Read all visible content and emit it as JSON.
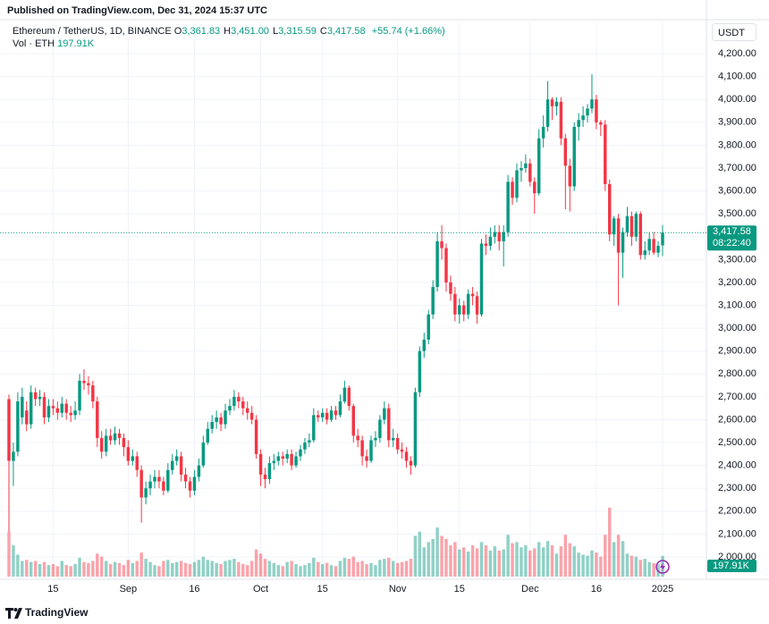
{
  "header": {
    "published": "Published on TradingView.com, Dec 31, 2024 15:37 UTC",
    "symbol": "Ethereum / TetherUS, 1D, BINANCE",
    "ohlc": [
      {
        "key": "O",
        "value": "3,361.83"
      },
      {
        "key": "H",
        "value": "3,451.00"
      },
      {
        "key": "L",
        "value": "3,315.59"
      },
      {
        "key": "C",
        "value": "3,417.58"
      }
    ],
    "change": "+55.74 (+1.66%)",
    "volume_label": "Vol · ETH",
    "volume_value": "197.91K"
  },
  "chart_data": {
    "type": "candlestick",
    "currency": "USDT",
    "categories": [
      null,
      null,
      null,
      null,
      null,
      null,
      null,
      null,
      null,
      null,
      "15",
      null,
      null,
      null,
      null,
      null,
      null,
      null,
      null,
      null,
      null,
      null,
      null,
      null,
      null,
      null,
      null,
      "Sep",
      null,
      null,
      null,
      null,
      null,
      null,
      null,
      null,
      null,
      null,
      null,
      null,
      null,
      null,
      "16",
      null,
      null,
      null,
      null,
      null,
      null,
      null,
      null,
      null,
      null,
      null,
      null,
      null,
      null,
      "Oct",
      null,
      null,
      null,
      null,
      null,
      null,
      null,
      null,
      null,
      null,
      null,
      null,
      null,
      "15",
      null,
      null,
      null,
      null,
      null,
      null,
      null,
      null,
      null,
      null,
      null,
      null,
      null,
      null,
      null,
      null,
      "Nov",
      null,
      null,
      null,
      null,
      null,
      null,
      null,
      null,
      null,
      null,
      null,
      null,
      null,
      "15",
      null,
      null,
      null,
      null,
      null,
      null,
      null,
      null,
      null,
      null,
      null,
      null,
      null,
      null,
      null,
      "Dec",
      null,
      null,
      null,
      null,
      null,
      null,
      null,
      null,
      null,
      null,
      null,
      null,
      null,
      null,
      "16",
      null,
      null,
      null,
      null,
      null,
      null,
      null,
      null,
      null,
      null,
      null,
      null,
      null,
      null,
      "2025"
    ],
    "open": [
      2690,
      2420,
      2460,
      2610,
      2640,
      2580,
      2720,
      2690,
      2700,
      2610,
      2660,
      2650,
      2630,
      2670,
      2630,
      2620,
      2640,
      2770,
      2760,
      2750,
      2680,
      2520,
      2460,
      2530,
      2510,
      2540,
      2520,
      2480,
      2420,
      2440,
      2380,
      2260,
      2300,
      2330,
      2350,
      2330,
      2290,
      2380,
      2420,
      2440,
      2360,
      2330,
      2290,
      2350,
      2400,
      2500,
      2560,
      2590,
      2610,
      2580,
      2640,
      2660,
      2700,
      2680,
      2650,
      2630,
      2600,
      2450,
      2360,
      2340,
      2410,
      2420,
      2440,
      2430,
      2450,
      2400,
      2440,
      2470,
      2500,
      2510,
      2620,
      2610,
      2630,
      2600,
      2640,
      2620,
      2680,
      2740,
      2660,
      2530,
      2510,
      2440,
      2420,
      2510,
      2520,
      2600,
      2650,
      2510,
      2520,
      2470,
      2460,
      2420,
      2400,
      2720,
      2900,
      2950,
      3060,
      3180,
      3380,
      3350,
      3200,
      3150,
      3060,
      3100,
      3060,
      3150,
      3140,
      3060,
      3370,
      3360,
      3400,
      3420,
      3380,
      3420,
      3640,
      3570,
      3690,
      3700,
      3720,
      3640,
      3590,
      3830,
      3880,
      4000,
      3970,
      3990,
      3830,
      3710,
      3620,
      3880,
      3910,
      3930,
      3960,
      4000,
      3900,
      3890,
      3630,
      3410,
      3480,
      3330,
      3420,
      3490,
      3400,
      3500,
      3320,
      3340,
      3390,
      3330,
      3361.83
    ],
    "high": [
      2710,
      2500,
      2720,
      2740,
      2680,
      2750,
      2740,
      2730,
      2720,
      2690,
      2690,
      2680,
      2700,
      2690,
      2660,
      2680,
      2800,
      2820,
      2790,
      2770,
      2700,
      2550,
      2560,
      2560,
      2570,
      2560,
      2540,
      2510,
      2470,
      2460,
      2400,
      2330,
      2360,
      2380,
      2380,
      2350,
      2410,
      2450,
      2470,
      2460,
      2390,
      2350,
      2380,
      2430,
      2530,
      2590,
      2620,
      2640,
      2630,
      2670,
      2690,
      2730,
      2720,
      2700,
      2680,
      2660,
      2620,
      2470,
      2390,
      2440,
      2450,
      2460,
      2460,
      2470,
      2470,
      2460,
      2490,
      2520,
      2540,
      2650,
      2640,
      2650,
      2650,
      2660,
      2660,
      2710,
      2770,
      2750,
      2670,
      2560,
      2530,
      2470,
      2530,
      2550,
      2620,
      2680,
      2670,
      2560,
      2540,
      2500,
      2480,
      2440,
      2740,
      2920,
      2980,
      3080,
      3210,
      3420,
      3450,
      3370,
      3230,
      3180,
      3130,
      3120,
      3170,
      3180,
      3160,
      3390,
      3410,
      3440,
      3450,
      3450,
      3450,
      3670,
      3660,
      3720,
      3730,
      3760,
      3740,
      3660,
      3870,
      3930,
      4080,
      4010,
      4010,
      4010,
      3850,
      3740,
      3900,
      3940,
      3970,
      3980,
      4110,
      4020,
      3910,
      3910,
      3650,
      3490,
      3500,
      3440,
      3530,
      3510,
      3510,
      3510,
      3380,
      3420,
      3420,
      3380,
      3451
    ],
    "low": [
      2110,
      2310,
      2440,
      2580,
      2550,
      2560,
      2660,
      2660,
      2580,
      2590,
      2620,
      2600,
      2610,
      2600,
      2590,
      2600,
      2620,
      2730,
      2710,
      2650,
      2480,
      2430,
      2440,
      2490,
      2490,
      2490,
      2440,
      2400,
      2400,
      2350,
      2150,
      2230,
      2270,
      2300,
      2300,
      2270,
      2280,
      2360,
      2400,
      2330,
      2300,
      2260,
      2270,
      2330,
      2390,
      2490,
      2540,
      2560,
      2550,
      2560,
      2620,
      2640,
      2650,
      2620,
      2600,
      2580,
      2430,
      2310,
      2300,
      2320,
      2380,
      2400,
      2400,
      2410,
      2380,
      2390,
      2420,
      2450,
      2480,
      2500,
      2590,
      2590,
      2580,
      2590,
      2600,
      2610,
      2670,
      2640,
      2500,
      2480,
      2400,
      2390,
      2410,
      2480,
      2500,
      2580,
      2480,
      2480,
      2450,
      2430,
      2390,
      2360,
      2390,
      2700,
      2870,
      2930,
      3040,
      3160,
      3300,
      3160,
      3120,
      3030,
      3020,
      3030,
      3040,
      3100,
      3020,
      3050,
      3320,
      3340,
      3370,
      3340,
      3270,
      3400,
      3540,
      3550,
      3640,
      3680,
      3620,
      3500,
      3580,
      3790,
      3860,
      3910,
      3930,
      3800,
      3520,
      3510,
      3600,
      3820,
      3880,
      3900,
      3940,
      3870,
      3840,
      3600,
      3380,
      3360,
      3100,
      3220,
      3400,
      3360,
      3380,
      3300,
      3300,
      3320,
      3320,
      3310,
      3315.59
    ],
    "close": [
      2420,
      2460,
      2680,
      2700,
      2580,
      2720,
      2690,
      2700,
      2610,
      2660,
      2650,
      2630,
      2670,
      2630,
      2620,
      2640,
      2770,
      2760,
      2750,
      2680,
      2520,
      2460,
      2530,
      2510,
      2540,
      2520,
      2480,
      2420,
      2440,
      2380,
      2260,
      2300,
      2330,
      2350,
      2330,
      2290,
      2380,
      2420,
      2440,
      2360,
      2330,
      2290,
      2350,
      2400,
      2500,
      2560,
      2590,
      2610,
      2580,
      2640,
      2660,
      2700,
      2680,
      2650,
      2630,
      2600,
      2450,
      2360,
      2340,
      2410,
      2420,
      2440,
      2430,
      2450,
      2400,
      2440,
      2470,
      2500,
      2510,
      2620,
      2610,
      2630,
      2600,
      2640,
      2620,
      2680,
      2740,
      2660,
      2530,
      2510,
      2440,
      2420,
      2510,
      2520,
      2600,
      2650,
      2510,
      2520,
      2470,
      2460,
      2420,
      2400,
      2720,
      2900,
      2950,
      3060,
      3180,
      3380,
      3350,
      3200,
      3150,
      3060,
      3100,
      3060,
      3150,
      3140,
      3060,
      3370,
      3360,
      3400,
      3420,
      3380,
      3420,
      3640,
      3570,
      3690,
      3700,
      3720,
      3640,
      3590,
      3830,
      3880,
      4000,
      3970,
      3990,
      3830,
      3710,
      3620,
      3880,
      3910,
      3930,
      3960,
      4000,
      3900,
      3890,
      3630,
      3410,
      3480,
      3330,
      3420,
      3490,
      3400,
      3500,
      3320,
      3340,
      3390,
      3330,
      3360,
      3417.58
    ],
    "volume": [
      430000,
      300000,
      210000,
      150000,
      160000,
      140000,
      150000,
      120000,
      140000,
      110000,
      120000,
      100000,
      150000,
      110000,
      100000,
      120000,
      180000,
      140000,
      130000,
      150000,
      220000,
      190000,
      150000,
      120000,
      140000,
      130000,
      110000,
      160000,
      130000,
      150000,
      230000,
      170000,
      140000,
      110000,
      100000,
      150000,
      160000,
      130000,
      140000,
      150000,
      130000,
      120000,
      140000,
      160000,
      190000,
      160000,
      150000,
      130000,
      120000,
      150000,
      160000,
      170000,
      140000,
      120000,
      110000,
      150000,
      260000,
      220000,
      170000,
      150000,
      130000,
      110000,
      100000,
      140000,
      150000,
      120000,
      100000,
      110000,
      130000,
      180000,
      140000,
      120000,
      130000,
      110000,
      100000,
      150000,
      180000,
      170000,
      190000,
      140000,
      150000,
      120000,
      130000,
      110000,
      160000,
      170000,
      180000,
      150000,
      130000,
      140000,
      150000,
      170000,
      390000,
      430000,
      280000,
      330000,
      360000,
      470000,
      390000,
      360000,
      300000,
      330000,
      260000,
      280000,
      240000,
      300000,
      270000,
      330000,
      300000,
      250000,
      290000,
      250000,
      260000,
      400000,
      320000,
      330000,
      280000,
      300000,
      250000,
      270000,
      330000,
      280000,
      340000,
      300000,
      220000,
      290000,
      400000,
      320000,
      290000,
      230000,
      210000,
      200000,
      250000,
      230000,
      190000,
      400000,
      660000,
      330000,
      400000,
      340000,
      220000,
      200000,
      190000,
      160000,
      170000,
      140000,
      130000,
      120000,
      197910
    ],
    "ylim": [
      1914,
      4337
    ],
    "yticks": [
      {
        "value": 2000,
        "label": "2,000.00"
      },
      {
        "value": 2100,
        "label": "2,100.00"
      },
      {
        "value": 2200,
        "label": "2,200.00"
      },
      {
        "value": 2300,
        "label": "2,300.00"
      },
      {
        "value": 2400,
        "label": "2,400.00"
      },
      {
        "value": 2500,
        "label": "2,500.00"
      },
      {
        "value": 2600,
        "label": "2,600.00"
      },
      {
        "value": 2700,
        "label": "2,700.00"
      },
      {
        "value": 2800,
        "label": "2,800.00"
      },
      {
        "value": 2900,
        "label": "2,900.00"
      },
      {
        "value": 3000,
        "label": "3,000.00"
      },
      {
        "value": 3100,
        "label": "3,100.00"
      },
      {
        "value": 3200,
        "label": "3,200.00"
      },
      {
        "value": 3300,
        "label": "3,300.00"
      },
      {
        "value": 3400,
        "label": "3,400.00"
      },
      {
        "value": 3500,
        "label": "3,500.00"
      },
      {
        "value": 3600,
        "label": "3,600.00"
      },
      {
        "value": 3700,
        "label": "3,700.00"
      },
      {
        "value": 3800,
        "label": "3,800.00"
      },
      {
        "value": 3900,
        "label": "3,900.00"
      },
      {
        "value": 4000,
        "label": "4,000.00"
      },
      {
        "value": 4100,
        "label": "4,100.00"
      },
      {
        "value": 4200,
        "label": "4,200.00"
      }
    ],
    "y2lim": [
      0,
      5300000
    ],
    "up_color": "#089981",
    "down_color": "#f23645",
    "grid": true,
    "last_price": {
      "value": 3417.58,
      "label": "3,417.58"
    },
    "countdown": "08:22:40",
    "last_volume": {
      "value": 197910,
      "label": "197.91K"
    }
  },
  "footer": {
    "brand": "TradingView"
  }
}
